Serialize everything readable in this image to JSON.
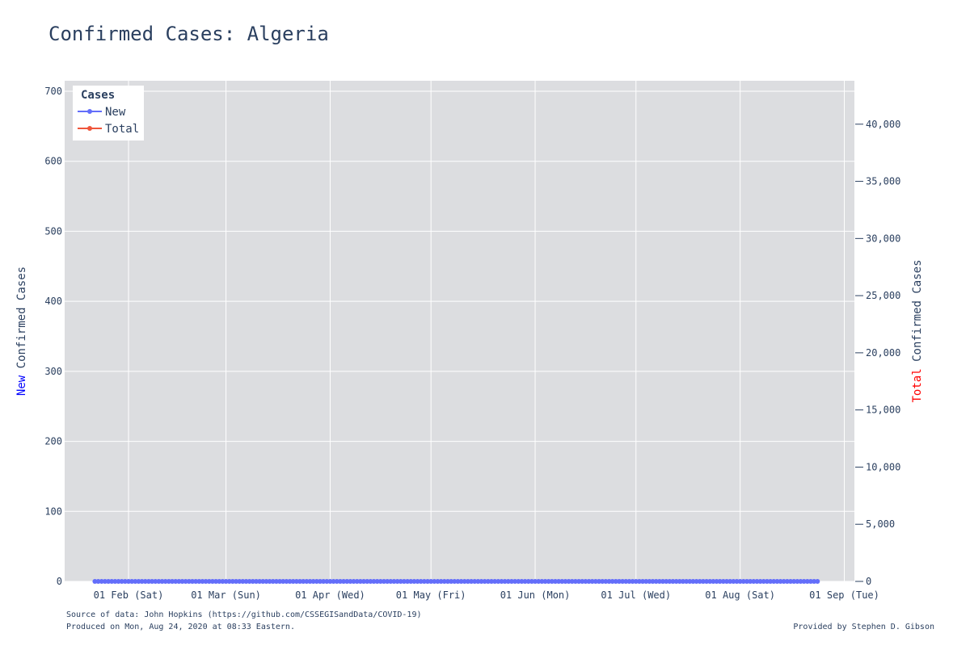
{
  "chart_data": {
    "type": "line",
    "title": "Confirmed Cases: Algeria",
    "legend": {
      "title": "Cases",
      "placement": "top-left"
    },
    "x_ticks": [
      "01 Feb (Sat)",
      "01 Mar (Sun)",
      "01 Apr (Wed)",
      "01 May (Fri)",
      "01 Jun (Mon)",
      "01 Jul (Wed)",
      "01 Aug (Sat)",
      "01 Sep (Tue)"
    ],
    "x_tick_dates": [
      "2020-02-01",
      "2020-03-01",
      "2020-04-01",
      "2020-05-01",
      "2020-06-01",
      "2020-07-01",
      "2020-08-01",
      "2020-09-01"
    ],
    "xlim": [
      "2020-01-13",
      "2020-09-04"
    ],
    "y_left": {
      "label_prefix": "New",
      "label_suffix": " Confirmed Cases",
      "range": [
        0,
        715
      ],
      "ticks": [
        0,
        100,
        200,
        300,
        400,
        500,
        600,
        700
      ],
      "tick_labels": [
        "0",
        "100",
        "200",
        "300",
        "400",
        "500",
        "600",
        "700"
      ]
    },
    "y_right": {
      "label_prefix": "Total",
      "label_suffix": " Confirmed Cases",
      "range": [
        0,
        43800
      ],
      "ticks": [
        0,
        5000,
        10000,
        15000,
        20000,
        25000,
        30000,
        35000,
        40000
      ],
      "tick_labels": [
        "0",
        "5,000",
        "10,000",
        "15,000",
        "20,000",
        "25,000",
        "30,000",
        "35,000",
        "40,000"
      ]
    },
    "grid": true,
    "x_start_date": "2020-01-22",
    "series": [
      {
        "name": "New",
        "color": "#636efa",
        "axis": "left",
        "values": [
          0,
          0,
          0,
          0,
          0,
          0,
          0,
          0,
          0,
          0,
          0,
          0,
          0,
          0,
          0,
          0,
          0,
          0,
          0,
          0,
          0,
          0,
          0,
          0,
          0,
          0,
          0,
          0,
          0,
          0,
          0,
          0,
          0,
          0,
          0,
          0,
          0,
          0,
          0,
          0,
          0,
          0,
          0,
          0,
          0,
          0,
          0,
          0,
          0,
          0,
          0,
          0,
          0,
          0,
          0,
          0,
          0,
          0,
          0,
          0,
          0,
          0,
          0,
          0,
          0,
          0,
          0,
          0,
          0,
          0,
          0,
          0,
          0,
          0,
          0,
          0,
          0,
          0,
          0,
          0,
          0,
          0,
          0,
          0,
          0,
          0,
          0,
          0,
          0,
          0,
          0,
          0,
          0,
          0,
          0,
          0,
          0,
          0,
          0,
          0,
          0,
          0,
          0,
          0,
          0,
          0,
          0,
          0,
          0,
          0,
          0,
          0,
          0,
          0,
          0,
          0,
          0,
          0,
          0,
          0,
          0,
          0,
          0,
          0,
          0,
          0,
          0,
          0,
          0,
          0,
          0,
          0,
          0,
          0,
          0,
          0,
          0,
          0,
          0,
          0,
          0,
          0,
          0,
          0,
          0,
          0,
          0,
          0,
          0,
          0,
          0,
          0,
          0,
          0,
          0,
          0,
          0,
          0,
          0,
          0,
          0,
          0,
          0,
          0,
          0,
          0,
          0,
          0,
          0,
          0,
          0,
          0,
          0,
          0,
          0,
          0,
          0,
          0,
          0,
          0,
          0,
          0,
          0,
          0,
          0,
          0,
          0,
          0,
          0,
          0,
          0,
          0,
          0,
          0,
          0,
          0,
          0,
          0,
          0,
          0,
          0,
          0,
          0,
          0,
          0,
          0,
          0,
          0,
          0,
          0,
          0,
          0,
          0,
          0,
          0,
          0
        ]
      },
      {
        "name": "Total",
        "color": "#ef553b",
        "axis": "right",
        "values": []
      }
    ]
  },
  "footer": {
    "source": "Source of data: John Hopkins (https://github.com/CSSEGISandData/COVID-19)",
    "produced": "Produced on Mon, Aug 24, 2020 at 08:33 Eastern.",
    "credit": "Provided by Stephen D. Gibson"
  },
  "colors": {
    "plot_bg": "#dcdde0",
    "grid": "#ffffff",
    "new_label": "#0000ff",
    "total_label": "#ff0000"
  }
}
